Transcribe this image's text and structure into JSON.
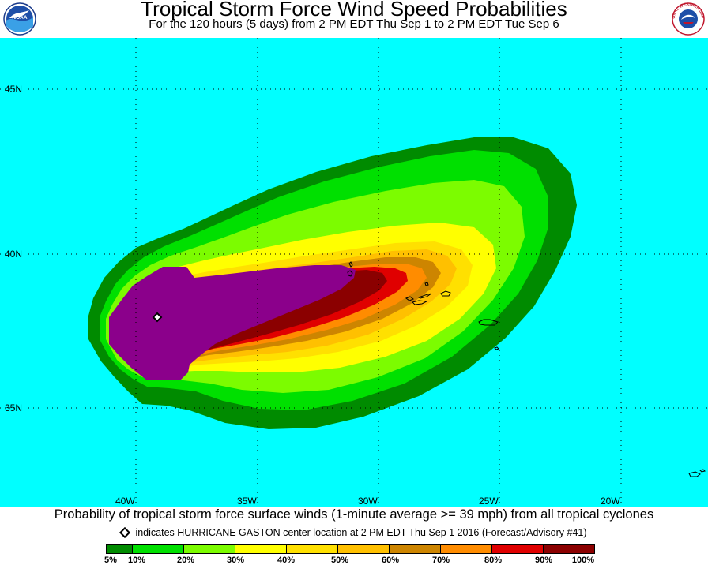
{
  "header": {
    "title": "Tropical Storm Force Wind Speed Probabilities",
    "subtitle": "For the 120 hours (5 days) from 2 PM EDT Thu Sep 1 to 2 PM EDT Tue Sep 6",
    "left_logo_text": "NOAA",
    "right_logo_text": "NATIONAL WEATHER SERVICE"
  },
  "map": {
    "background_color": "#00ffff",
    "gridlines": true,
    "lat_labels": [
      "45N",
      "40N",
      "35N"
    ],
    "lon_labels": [
      "40W",
      "35W",
      "30W",
      "25W",
      "20W"
    ],
    "storm_marker_icon": "diamond-icon"
  },
  "caption": "Probability of tropical storm force surface winds (1-minute average >= 39 mph) from all tropical cyclones",
  "storm_note": "indicates HURRICANE GASTON center location at 2 PM EDT Thu Sep 1 2016 (Forecast/Advisory #41)",
  "legend": {
    "labels": [
      "5%",
      "10%",
      "20%",
      "30%",
      "40%",
      "50%",
      "60%",
      "70%",
      "80%",
      "90%",
      "100%"
    ],
    "colors": [
      "#008b00",
      "#00e000",
      "#7cfc00",
      "#ffff00",
      "#ffe000",
      "#ffc000",
      "#cd8500",
      "#ff8c00",
      "#e00000",
      "#8b0000",
      "#8b008b"
    ]
  }
}
